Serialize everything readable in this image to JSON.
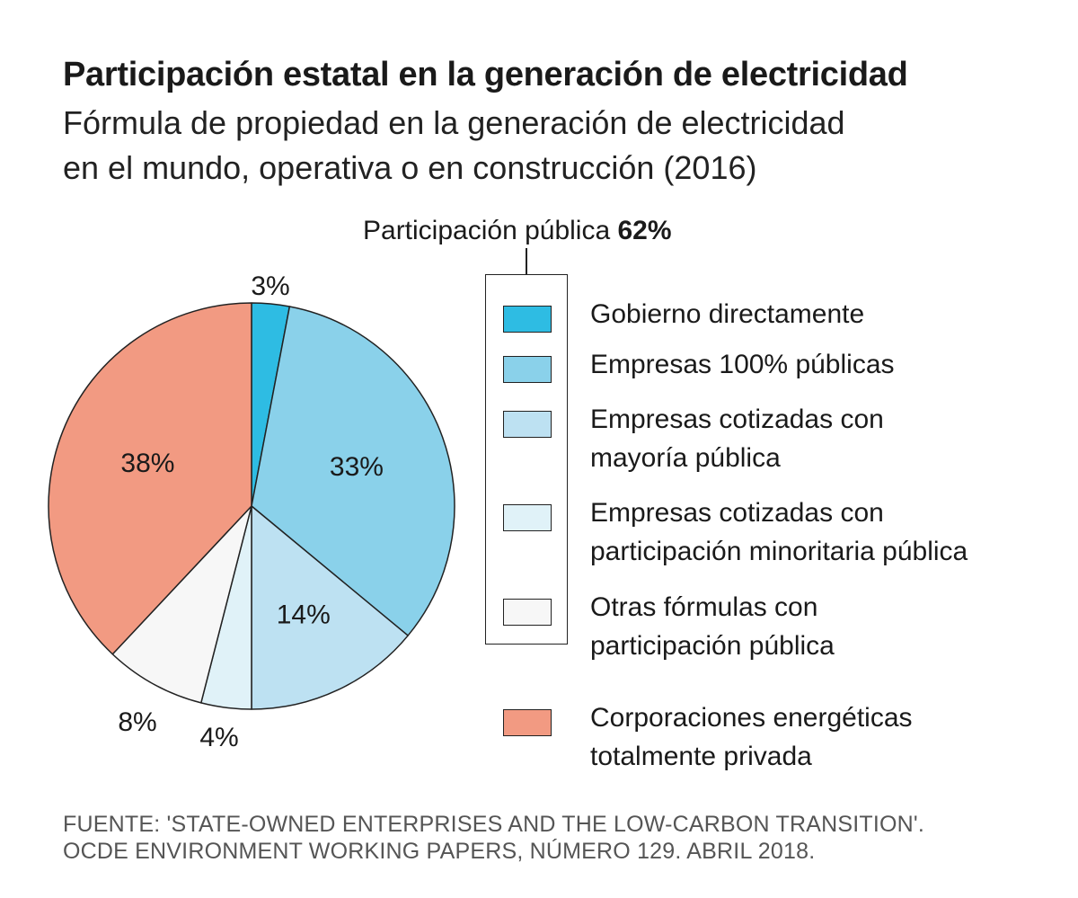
{
  "header": {
    "title": "Participación estatal en la generación de electricidad",
    "subtitle_line1": "Fórmula de propiedad en la generación de electricidad",
    "subtitle_line2": "en el mundo, operativa o en construcción (2016)"
  },
  "public_share": {
    "label": "Participación pública",
    "value": "62%"
  },
  "colors": {
    "gobierno": "#2ebce3",
    "empresas_100": "#8ad1ea",
    "mayoria": "#bde1f2",
    "minoritaria": "#e0f2f8",
    "otras": "#f7f7f7",
    "privada": "#f29a82",
    "outline": "#222222"
  },
  "legend": {
    "items": [
      {
        "key": "gobierno",
        "lines": [
          "Gobierno directamente"
        ]
      },
      {
        "key": "empresas_100",
        "lines": [
          "Empresas 100% públicas"
        ]
      },
      {
        "key": "mayoria",
        "lines": [
          "Empresas cotizadas con",
          "mayoría pública"
        ]
      },
      {
        "key": "minoritaria",
        "lines": [
          "Empresas cotizadas con",
          "participación minoritaria pública"
        ]
      },
      {
        "key": "otras",
        "lines": [
          "Otras fórmulas con",
          "participación pública"
        ]
      },
      {
        "key": "privada",
        "lines": [
          "Corporaciones energéticas",
          "totalmente privada"
        ]
      }
    ]
  },
  "chart_data": {
    "type": "pie",
    "title": "Participación estatal en la generación de electricidad",
    "categories": [
      "Gobierno directamente",
      "Empresas 100% públicas",
      "Empresas cotizadas con mayoría pública",
      "Empresas cotizadas con participación minoritaria pública",
      "Otras fórmulas con participación pública",
      "Corporaciones energéticas totalmente privada"
    ],
    "values": [
      3,
      33,
      14,
      4,
      8,
      38
    ],
    "labels": [
      "3%",
      "33%",
      "14%",
      "4%",
      "8%",
      "38%"
    ],
    "start_angle": "12 o'clock",
    "direction": "clockwise"
  },
  "source": {
    "line1": "FUENTE: 'STATE-OWNED ENTERPRISES AND THE LOW-CARBON TRANSITION'.",
    "line2": "OCDE ENVIRONMENT WORKING PAPERS, NÚMERO 129. ABRIL 2018."
  }
}
